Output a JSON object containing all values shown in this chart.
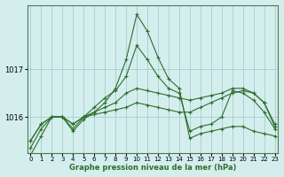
{
  "title": "Graphe pression niveau de la mer (hPa)",
  "background_color": "#d4eeee",
  "grid_color": "#a8cccc",
  "line_color": "#2d6e2d",
  "x_ticks": [
    0,
    1,
    2,
    3,
    4,
    5,
    6,
    7,
    8,
    9,
    10,
    11,
    12,
    13,
    14,
    15,
    16,
    17,
    18,
    19,
    20,
    21,
    22,
    23
  ],
  "y_ticks": [
    1016,
    1017
  ],
  "ylim": [
    1015.25,
    1018.35
  ],
  "xlim": [
    -0.3,
    23.3
  ],
  "series": [
    [
      1015.5,
      1015.85,
      1016.0,
      1016.0,
      1015.85,
      1016.0,
      1016.05,
      1016.1,
      1016.15,
      1016.2,
      1016.3,
      1016.25,
      1016.2,
      1016.15,
      1016.1,
      1016.1,
      1016.2,
      1016.3,
      1016.4,
      1016.5,
      1016.55,
      1016.5,
      1016.3,
      1015.8
    ],
    [
      1015.5,
      1015.85,
      1016.0,
      1016.0,
      1015.85,
      1016.0,
      1016.1,
      1016.2,
      1016.3,
      1016.5,
      1016.6,
      1016.55,
      1016.5,
      1016.45,
      1016.4,
      1016.35,
      1016.4,
      1016.45,
      1016.5,
      1016.6,
      1016.6,
      1016.5,
      1016.3,
      1015.85
    ],
    [
      1015.35,
      1015.75,
      1016.0,
      1016.0,
      1015.75,
      1016.0,
      1016.2,
      1016.4,
      1016.55,
      1016.85,
      1017.5,
      1017.2,
      1016.85,
      1016.6,
      1016.5,
      1015.7,
      1015.8,
      1015.85,
      1016.0,
      1016.55,
      1016.5,
      1016.35,
      1016.1,
      1015.75
    ],
    [
      1015.2,
      1015.6,
      1016.0,
      1016.0,
      1015.7,
      1015.95,
      1016.1,
      1016.3,
      1016.6,
      1017.2,
      1018.15,
      1017.8,
      1017.25,
      1016.8,
      1016.6,
      1015.55,
      1015.65,
      1015.7,
      1015.75,
      1015.8,
      1015.8,
      1015.7,
      1015.65,
      1015.6
    ]
  ]
}
